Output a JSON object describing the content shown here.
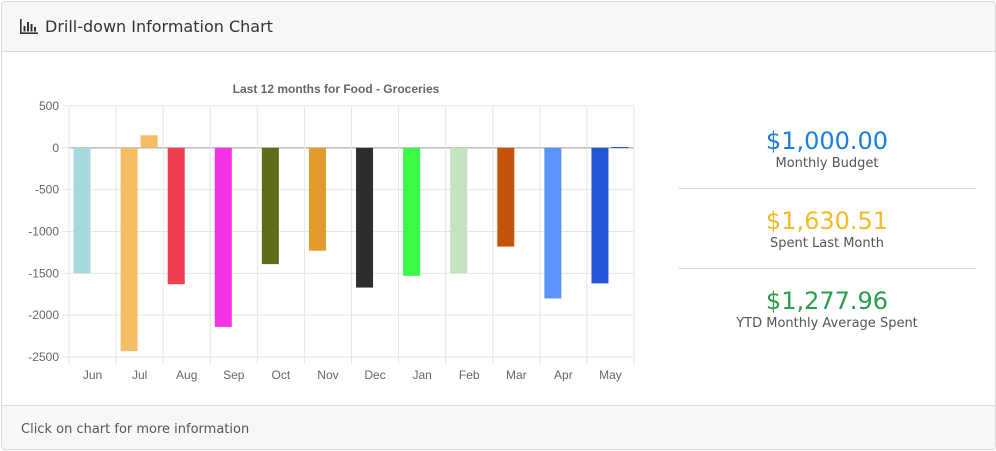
{
  "header": {
    "title": "Drill-down Information Chart",
    "icon": "bar-chart-icon"
  },
  "footer": {
    "text": "Click on chart for more information"
  },
  "stats": [
    {
      "value": "$1,000.00",
      "label": "Monthly Budget",
      "color": "#1a7fe0"
    },
    {
      "value": "$1,630.51",
      "label": "Spent Last Month",
      "color": "#f5bb27"
    },
    {
      "value": "$1,277.96",
      "label": "YTD Monthly Average Spent",
      "color": "#2a9d48"
    }
  ],
  "chart_data": {
    "type": "bar",
    "title": "Last 12 months for Food - Groceries",
    "categories": [
      "Jun",
      "Jul",
      "Aug",
      "Sep",
      "Oct",
      "Nov",
      "Dec",
      "Jan",
      "Feb",
      "Mar",
      "Apr",
      "May"
    ],
    "series": [
      {
        "values": [
          -1500,
          -2430,
          -1630,
          -2140,
          -1390,
          -1230,
          -1670,
          -1530,
          -1500,
          -1180,
          -1800,
          -1620
        ],
        "colors": [
          "#a8d8dc",
          "#f5be65",
          "#ee3e4f",
          "#f533e6",
          "#5b6e1a",
          "#e29b2d",
          "#2d2d2d",
          "#3bfa45",
          "#c4e3c1",
          "#c6530b",
          "#5a93f9",
          "#2455d8"
        ]
      },
      {
        "values": [
          0,
          150,
          0,
          0,
          0,
          0,
          0,
          0,
          0,
          0,
          0,
          10
        ],
        "colors": [
          "#a8d8dc",
          "#f5be65",
          "#ee3e4f",
          "#f533e6",
          "#5b6e1a",
          "#e29b2d",
          "#2d2d2d",
          "#3bfa45",
          "#c4e3c1",
          "#c6530b",
          "#5a93f9",
          "#2455d8"
        ]
      }
    ],
    "ylim": [
      -2500,
      500
    ],
    "yticks": [
      500,
      0,
      -500,
      -1000,
      -1500,
      -2000,
      -2500
    ],
    "grid": true,
    "legend": "none"
  }
}
